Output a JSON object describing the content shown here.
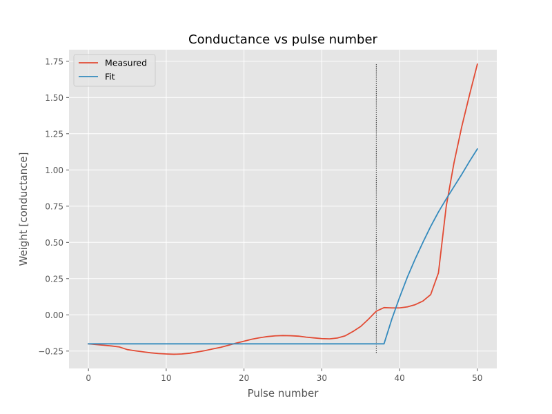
{
  "chart_data": {
    "type": "line",
    "title": "Conductance vs pulse number",
    "xlabel": "Pulse number",
    "ylabel": "Weight [conductance]",
    "xlim": [
      -2.5,
      52.5
    ],
    "ylim": [
      -0.37,
      1.83
    ],
    "x_ticks": [
      0,
      10,
      20,
      30,
      40,
      50
    ],
    "x_tick_labels": [
      "0",
      "10",
      "20",
      "30",
      "40",
      "50"
    ],
    "y_ticks": [
      -0.25,
      0.0,
      0.25,
      0.5,
      0.75,
      1.0,
      1.25,
      1.5,
      1.75
    ],
    "y_tick_labels": [
      "−0.25",
      "0.00",
      "0.25",
      "0.50",
      "0.75",
      "1.00",
      "1.25",
      "1.50",
      "1.75"
    ],
    "grid": true,
    "legend_position": "top-left",
    "series": [
      {
        "name": "Measured",
        "color": "#E24A33",
        "x": [
          0,
          1,
          2,
          3,
          4,
          5,
          6,
          7,
          8,
          9,
          10,
          11,
          12,
          13,
          14,
          15,
          16,
          17,
          18,
          19,
          20,
          21,
          22,
          23,
          24,
          25,
          26,
          27,
          28,
          29,
          30,
          31,
          32,
          33,
          34,
          35,
          36,
          37,
          38,
          39,
          40,
          41,
          42,
          43,
          44,
          45,
          46,
          47,
          48,
          49,
          50
        ],
        "y": [
          -0.2,
          -0.205,
          -0.21,
          -0.215,
          -0.222,
          -0.24,
          -0.248,
          -0.255,
          -0.262,
          -0.267,
          -0.27,
          -0.272,
          -0.27,
          -0.265,
          -0.256,
          -0.247,
          -0.235,
          -0.224,
          -0.21,
          -0.195,
          -0.182,
          -0.168,
          -0.158,
          -0.15,
          -0.145,
          -0.143,
          -0.144,
          -0.147,
          -0.154,
          -0.159,
          -0.164,
          -0.166,
          -0.16,
          -0.145,
          -0.115,
          -0.08,
          -0.03,
          0.025,
          0.05,
          0.048,
          0.048,
          0.055,
          0.07,
          0.095,
          0.14,
          0.29,
          0.75,
          1.05,
          1.3,
          1.52,
          1.73
        ]
      },
      {
        "name": "Fit",
        "color": "#348ABD",
        "x": [
          0,
          1,
          2,
          3,
          4,
          5,
          6,
          7,
          8,
          9,
          10,
          11,
          12,
          13,
          14,
          15,
          16,
          17,
          18,
          19,
          20,
          21,
          22,
          23,
          24,
          25,
          26,
          27,
          28,
          29,
          30,
          31,
          32,
          33,
          34,
          35,
          36,
          37,
          38,
          39,
          40,
          41,
          42,
          43,
          44,
          45,
          46,
          47,
          48,
          49,
          50
        ],
        "y": [
          -0.2,
          -0.2,
          -0.2,
          -0.2,
          -0.2,
          -0.2,
          -0.2,
          -0.2,
          -0.2,
          -0.2,
          -0.2,
          -0.2,
          -0.2,
          -0.2,
          -0.2,
          -0.2,
          -0.2,
          -0.2,
          -0.2,
          -0.2,
          -0.2,
          -0.2,
          -0.2,
          -0.2,
          -0.2,
          -0.2,
          -0.2,
          -0.2,
          -0.2,
          -0.2,
          -0.2,
          -0.2,
          -0.2,
          -0.2,
          -0.2,
          -0.2,
          -0.2,
          -0.2,
          -0.2,
          -0.03,
          0.12,
          0.26,
          0.385,
          0.5,
          0.61,
          0.71,
          0.8,
          0.885,
          0.97,
          1.06,
          1.145
        ]
      }
    ],
    "vline": {
      "x": 37,
      "y_range": [
        -0.27,
        1.73
      ],
      "color": "#000000",
      "style": "dashed"
    }
  }
}
